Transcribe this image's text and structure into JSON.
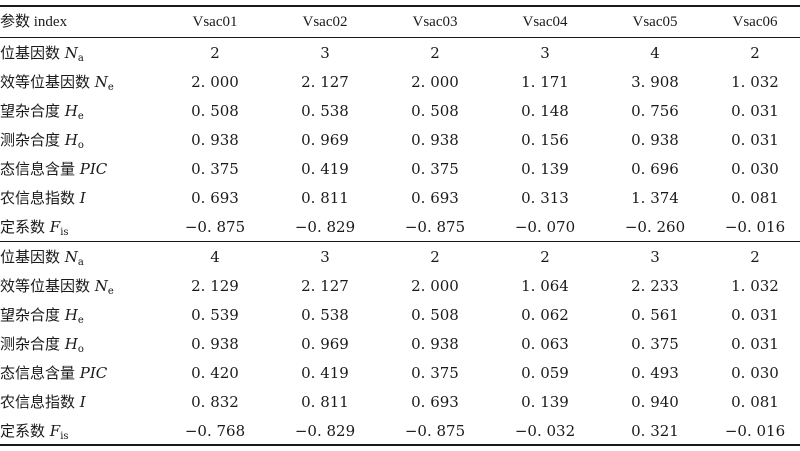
{
  "header": {
    "label": "参数 index",
    "columns": [
      "Vsac01",
      "Vsac02",
      "Vsac03",
      "Vsac04",
      "Vsac05",
      "Vsac06"
    ]
  },
  "groups": [
    {
      "rows": [
        {
          "label": "位基因数 ",
          "sym": "N",
          "sub": "a",
          "values": [
            "2",
            "3",
            "2",
            "3",
            "4",
            "2"
          ]
        },
        {
          "label": "效等位基因数 ",
          "sym": "N",
          "sub": "e",
          "values": [
            "2. 000",
            "2. 127",
            "2. 000",
            "1. 171",
            "3. 908",
            "1. 032"
          ]
        },
        {
          "label": "望杂合度 ",
          "sym": "H",
          "sub": "e",
          "values": [
            "0. 508",
            "0. 538",
            "0. 508",
            "0. 148",
            "0. 756",
            "0. 031"
          ]
        },
        {
          "label": "测杂合度 ",
          "sym": "H",
          "sub": "o",
          "values": [
            "0. 938",
            "0. 969",
            "0. 938",
            "0. 156",
            "0. 938",
            "0. 031"
          ]
        },
        {
          "label": "态信息含量 ",
          "sym": "PIC",
          "sub": "",
          "values": [
            "0. 375",
            "0. 419",
            "0. 375",
            "0. 139",
            "0. 696",
            "0. 030"
          ]
        },
        {
          "label": "农信息指数 ",
          "sym": "I",
          "sub": "",
          "values": [
            "0. 693",
            "0. 811",
            "0. 693",
            "0. 313",
            "1. 374",
            "0. 081"
          ]
        },
        {
          "label": "定系数 ",
          "sym": "F",
          "sub": "is",
          "values": [
            "−0. 875",
            "−0. 829",
            "−0. 875",
            "−0. 070",
            "−0. 260",
            "−0. 016"
          ]
        }
      ]
    },
    {
      "rows": [
        {
          "label": "位基因数 ",
          "sym": "N",
          "sub": "a",
          "values": [
            "4",
            "3",
            "2",
            "2",
            "3",
            "2"
          ]
        },
        {
          "label": "效等位基因数 ",
          "sym": "N",
          "sub": "e",
          "values": [
            "2. 129",
            "2. 127",
            "2. 000",
            "1. 064",
            "2. 233",
            "1. 032"
          ]
        },
        {
          "label": "望杂合度 ",
          "sym": "H",
          "sub": "e",
          "values": [
            "0. 539",
            "0. 538",
            "0. 508",
            "0. 062",
            "0. 561",
            "0. 031"
          ]
        },
        {
          "label": "测杂合度 ",
          "sym": "H",
          "sub": "o",
          "values": [
            "0. 938",
            "0. 969",
            "0. 938",
            "0. 063",
            "0. 375",
            "0. 031"
          ]
        },
        {
          "label": "态信息含量 ",
          "sym": "PIC",
          "sub": "",
          "values": [
            "0. 420",
            "0. 419",
            "0. 375",
            "0. 059",
            "0. 493",
            "0. 030"
          ]
        },
        {
          "label": "农信息指数 ",
          "sym": "I",
          "sub": "",
          "values": [
            "0. 832",
            "0. 811",
            "0. 693",
            "0. 139",
            "0. 940",
            "0. 081"
          ]
        },
        {
          "label": "定系数 ",
          "sym": "F",
          "sub": "is",
          "values": [
            "−0. 768",
            "−0. 829",
            "−0. 875",
            "−0. 032",
            "0. 321",
            "−0. 016"
          ]
        }
      ]
    }
  ]
}
